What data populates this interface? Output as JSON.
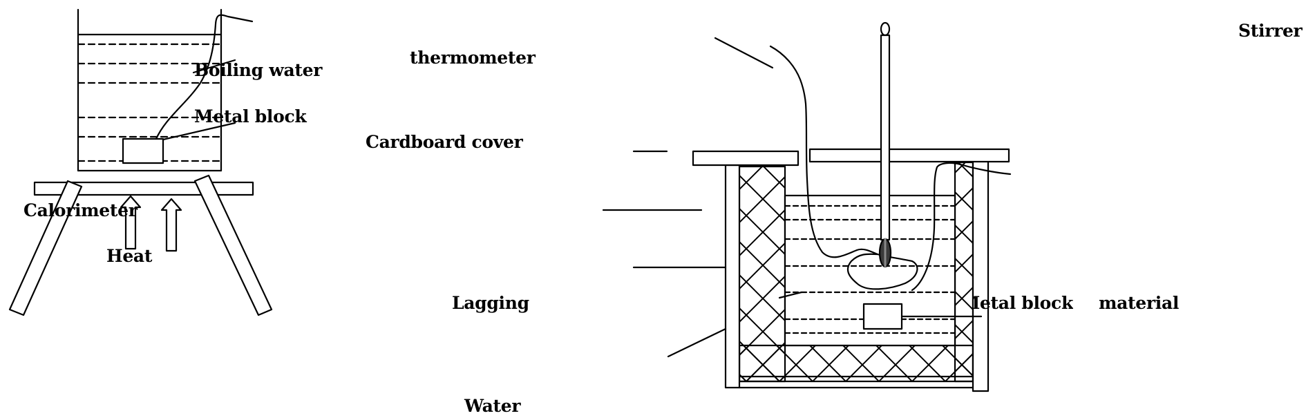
{
  "colors": {
    "ink": "#000000",
    "paper": "#ffffff",
    "bulb": "#444444"
  },
  "labels": {
    "boiling_water": "Boiling water",
    "metal_block_left": "Metal block",
    "calorimeter": "Calorimeter",
    "heat": "Heat",
    "thermometer": "thermometer",
    "cardboard_cover": "Cardboard cover",
    "lagging": "Lagging",
    "water": "Water",
    "stirrer": "Stirrer",
    "metal_block_right": "Metal block",
    "material": "material"
  }
}
